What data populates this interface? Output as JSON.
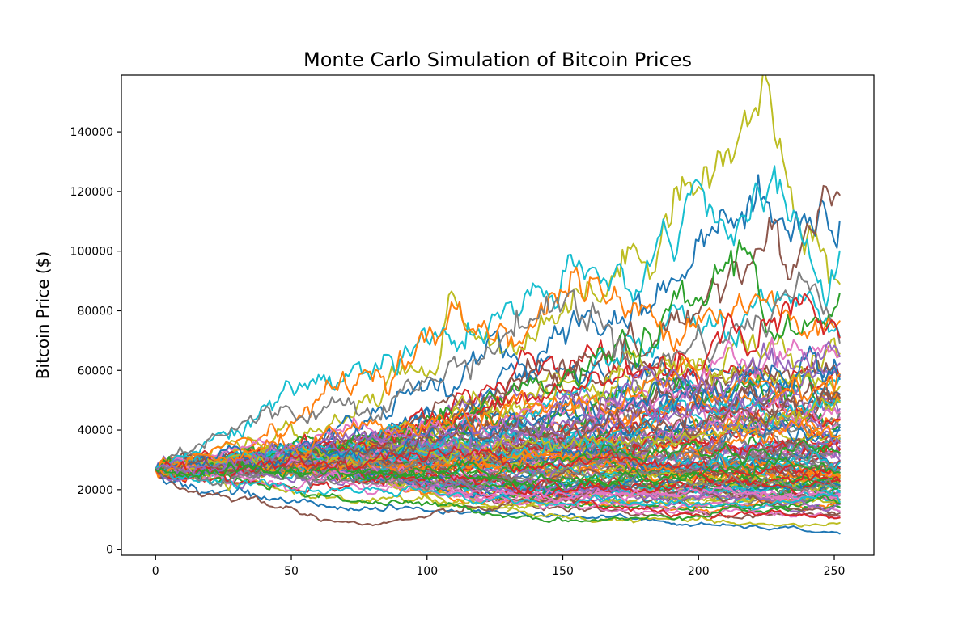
{
  "chart_data": {
    "type": "line",
    "title": "Monte Carlo Simulation of Bitcoin Prices",
    "xlabel": "",
    "ylabel": "Bitcoin Price ($)",
    "xlim": [
      -12.6,
      264.6
    ],
    "ylim": [
      -2000,
      159000
    ],
    "xticks": [
      0,
      50,
      100,
      150,
      200,
      250
    ],
    "yticks": [
      0,
      20000,
      40000,
      60000,
      80000,
      100000,
      120000,
      140000
    ],
    "grid": false,
    "legend": "none",
    "days": 252,
    "start_price": 26800,
    "palette": [
      "#1f77b4",
      "#ff7f0e",
      "#2ca02c",
      "#d62728",
      "#9467bd",
      "#8c564b",
      "#e377c2",
      "#7f7f7f",
      "#bcbd22",
      "#17becf"
    ],
    "series": [
      {
        "color": "#bcbd22",
        "values": [
          [
            0,
            26800
          ],
          [
            50,
            38000
          ],
          [
            80,
            52000
          ],
          [
            105,
            60000
          ],
          [
            108,
            83000
          ],
          [
            130,
            70000
          ],
          [
            150,
            85000
          ],
          [
            170,
            90000
          ],
          [
            185,
            112000
          ],
          [
            195,
            130000
          ],
          [
            205,
            128000
          ],
          [
            215,
            135000
          ],
          [
            221,
            151000
          ],
          [
            230,
            128000
          ],
          [
            240,
            108000
          ],
          [
            252,
            88000
          ]
        ]
      },
      {
        "color": "#1f77b4",
        "values": [
          [
            0,
            26800
          ],
          [
            50,
            34000
          ],
          [
            100,
            56000
          ],
          [
            130,
            62000
          ],
          [
            160,
            78000
          ],
          [
            185,
            85000
          ],
          [
            200,
            100000
          ],
          [
            207,
            122000
          ],
          [
            215,
            113000
          ],
          [
            225,
            115000
          ],
          [
            235,
            108000
          ],
          [
            245,
            122000
          ],
          [
            252,
            111000
          ]
        ]
      },
      {
        "color": "#8c564b",
        "values": [
          [
            0,
            26800
          ],
          [
            60,
            32000
          ],
          [
            100,
            42000
          ],
          [
            140,
            58000
          ],
          [
            170,
            62000
          ],
          [
            195,
            75000
          ],
          [
            205,
            92000
          ],
          [
            215,
            96000
          ],
          [
            225,
            100000
          ],
          [
            235,
            96000
          ],
          [
            245,
            118000
          ],
          [
            248,
            127000
          ],
          [
            252,
            118000
          ]
        ]
      },
      {
        "color": "#17becf",
        "values": [
          [
            0,
            26800
          ],
          [
            30,
            42000
          ],
          [
            70,
            60000
          ],
          [
            110,
            70000
          ],
          [
            150,
            85000
          ],
          [
            170,
            88000
          ],
          [
            180,
            98000
          ],
          [
            190,
            102000
          ],
          [
            200,
            130000
          ],
          [
            210,
            112000
          ],
          [
            220,
            105000
          ],
          [
            232,
            116000
          ],
          [
            240,
            105000
          ],
          [
            246,
            82000
          ],
          [
            252,
            92000
          ]
        ]
      },
      {
        "color": "#2ca02c",
        "values": [
          [
            0,
            26800
          ],
          [
            50,
            30000
          ],
          [
            100,
            40000
          ],
          [
            140,
            50000
          ],
          [
            180,
            70000
          ],
          [
            200,
            80000
          ],
          [
            210,
            95000
          ],
          [
            218,
            101000
          ],
          [
            225,
            80000
          ],
          [
            240,
            70000
          ],
          [
            252,
            75000
          ]
        ]
      },
      {
        "color": "#ff7f0e",
        "values": [
          [
            0,
            26800
          ],
          [
            50,
            45000
          ],
          [
            75,
            58000
          ],
          [
            110,
            74000
          ],
          [
            140,
            76000
          ],
          [
            155,
            93000
          ],
          [
            170,
            80000
          ],
          [
            185,
            75000
          ],
          [
            200,
            85000
          ],
          [
            220,
            82000
          ],
          [
            240,
            72000
          ],
          [
            252,
            78000
          ]
        ]
      },
      {
        "color": "#7f7f7f",
        "values": [
          [
            0,
            26800
          ],
          [
            20,
            40000
          ],
          [
            60,
            48000
          ],
          [
            100,
            55000
          ],
          [
            140,
            80000
          ],
          [
            160,
            82000
          ],
          [
            180,
            60000
          ],
          [
            200,
            70000
          ],
          [
            220,
            75000
          ],
          [
            235,
            88000
          ],
          [
            245,
            82000
          ],
          [
            252,
            80000
          ]
        ]
      },
      {
        "color": "#d62728",
        "values": [
          [
            0,
            26800
          ],
          [
            40,
            30000
          ],
          [
            80,
            38000
          ],
          [
            120,
            45000
          ],
          [
            160,
            55000
          ],
          [
            200,
            65000
          ],
          [
            230,
            80000
          ],
          [
            245,
            75000
          ],
          [
            252,
            70000
          ]
        ]
      },
      {
        "color": "#1f77b4",
        "values": [
          [
            0,
            26800
          ],
          [
            20,
            20000
          ],
          [
            60,
            15000
          ],
          [
            100,
            13000
          ],
          [
            140,
            12000
          ],
          [
            180,
            10000
          ],
          [
            200,
            8000
          ],
          [
            230,
            7000
          ],
          [
            252,
            5500
          ]
        ]
      },
      {
        "color": "#bcbd22",
        "values": [
          [
            0,
            26800
          ],
          [
            30,
            21000
          ],
          [
            80,
            17000
          ],
          [
            120,
            14000
          ],
          [
            160,
            10000
          ],
          [
            200,
            9500
          ],
          [
            230,
            7500
          ],
          [
            252,
            9000
          ]
        ]
      },
      {
        "color": "#8c564b",
        "values": [
          [
            0,
            26800
          ],
          [
            10,
            20000
          ],
          [
            40,
            16000
          ],
          [
            60,
            11000
          ],
          [
            80,
            8000
          ],
          [
            100,
            11000
          ],
          [
            130,
            15000
          ],
          [
            160,
            18000
          ],
          [
            200,
            20000
          ],
          [
            252,
            12000
          ]
        ]
      },
      {
        "color": "#2ca02c",
        "values": [
          [
            0,
            26800
          ],
          [
            40,
            22000
          ],
          [
            80,
            16000
          ],
          [
            120,
            13000
          ],
          [
            150,
            10000
          ],
          [
            180,
            10000
          ],
          [
            210,
            14000
          ],
          [
            252,
            16000
          ]
        ]
      },
      {
        "color": "#9467bd",
        "values": [
          [
            0,
            26800
          ],
          [
            50,
            24000
          ],
          [
            100,
            22000
          ],
          [
            150,
            20000
          ],
          [
            200,
            18000
          ],
          [
            252,
            14000
          ]
        ]
      },
      {
        "color": "#e377c2",
        "values": [
          [
            0,
            26800
          ],
          [
            40,
            35000
          ],
          [
            80,
            40000
          ],
          [
            120,
            42000
          ],
          [
            160,
            50000
          ],
          [
            200,
            55000
          ],
          [
            230,
            62000
          ],
          [
            252,
            68000
          ]
        ]
      },
      {
        "color": "#17becf",
        "values": [
          [
            0,
            26800
          ],
          [
            40,
            32000
          ],
          [
            80,
            30000
          ],
          [
            120,
            35000
          ],
          [
            160,
            38000
          ],
          [
            200,
            45000
          ],
          [
            252,
            50000
          ]
        ]
      },
      {
        "color": "#ff7f0e",
        "values": [
          [
            0,
            26800
          ],
          [
            50,
            28000
          ],
          [
            100,
            26000
          ],
          [
            150,
            30000
          ],
          [
            200,
            35000
          ],
          [
            252,
            40000
          ]
        ]
      },
      {
        "color": "#d62728",
        "values": [
          [
            0,
            26800
          ],
          [
            50,
            22000
          ],
          [
            100,
            24000
          ],
          [
            150,
            20000
          ],
          [
            200,
            22000
          ],
          [
            252,
            22000
          ]
        ]
      },
      {
        "color": "#7f7f7f",
        "values": [
          [
            0,
            26800
          ],
          [
            50,
            26000
          ],
          [
            100,
            30000
          ],
          [
            150,
            28000
          ],
          [
            200,
            32000
          ],
          [
            252,
            28000
          ]
        ]
      },
      {
        "color": "#9467bd",
        "values": [
          [
            0,
            26800
          ],
          [
            40,
            30000
          ],
          [
            100,
            35000
          ],
          [
            160,
            42000
          ],
          [
            210,
            48000
          ],
          [
            252,
            60000
          ]
        ]
      },
      {
        "color": "#bcbd22",
        "values": [
          [
            0,
            26800
          ],
          [
            50,
            30000
          ],
          [
            100,
            32000
          ],
          [
            150,
            35000
          ],
          [
            200,
            38000
          ],
          [
            252,
            45000
          ]
        ]
      },
      {
        "color": "#1f77b4",
        "values": [
          [
            0,
            26800
          ],
          [
            50,
            32000
          ],
          [
            100,
            36000
          ],
          [
            150,
            45000
          ],
          [
            200,
            50000
          ],
          [
            252,
            62000
          ]
        ]
      },
      {
        "color": "#2ca02c",
        "values": [
          [
            0,
            26800
          ],
          [
            60,
            25000
          ],
          [
            120,
            28000
          ],
          [
            180,
            32000
          ],
          [
            252,
            35000
          ]
        ]
      },
      {
        "color": "#e377c2",
        "values": [
          [
            0,
            26800
          ],
          [
            50,
            22000
          ],
          [
            100,
            20000
          ],
          [
            150,
            18000
          ],
          [
            200,
            20000
          ],
          [
            252,
            18000
          ]
        ]
      },
      {
        "color": "#8c564b",
        "values": [
          [
            0,
            26800
          ],
          [
            60,
            30000
          ],
          [
            120,
            38000
          ],
          [
            180,
            42000
          ],
          [
            252,
            50000
          ]
        ]
      },
      {
        "color": "#17becf",
        "values": [
          [
            0,
            26800
          ],
          [
            50,
            20000
          ],
          [
            100,
            18000
          ],
          [
            150,
            16000
          ],
          [
            200,
            15000
          ],
          [
            252,
            15000
          ]
        ]
      },
      {
        "color": "#ff7f0e",
        "values": [
          [
            0,
            26800
          ],
          [
            50,
            34000
          ],
          [
            100,
            40000
          ],
          [
            150,
            48000
          ],
          [
            200,
            55000
          ],
          [
            252,
            58000
          ]
        ]
      },
      {
        "color": "#d62728",
        "values": [
          [
            0,
            26800
          ],
          [
            50,
            28000
          ],
          [
            100,
            32000
          ],
          [
            150,
            30000
          ],
          [
            200,
            28000
          ],
          [
            252,
            25000
          ]
        ]
      },
      {
        "color": "#7f7f7f",
        "values": [
          [
            0,
            26800
          ],
          [
            50,
            24000
          ],
          [
            100,
            22000
          ],
          [
            150,
            25000
          ],
          [
            200,
            24000
          ],
          [
            252,
            20000
          ]
        ]
      },
      {
        "color": "#9467bd",
        "values": [
          [
            0,
            26800
          ],
          [
            60,
            35000
          ],
          [
            120,
            40000
          ],
          [
            180,
            55000
          ],
          [
            252,
            65000
          ]
        ]
      },
      {
        "color": "#2ca02c",
        "values": [
          [
            0,
            26800
          ],
          [
            50,
            26000
          ],
          [
            100,
            25000
          ],
          [
            150,
            22000
          ],
          [
            200,
            25000
          ],
          [
            252,
            28000
          ]
        ]
      }
    ]
  }
}
